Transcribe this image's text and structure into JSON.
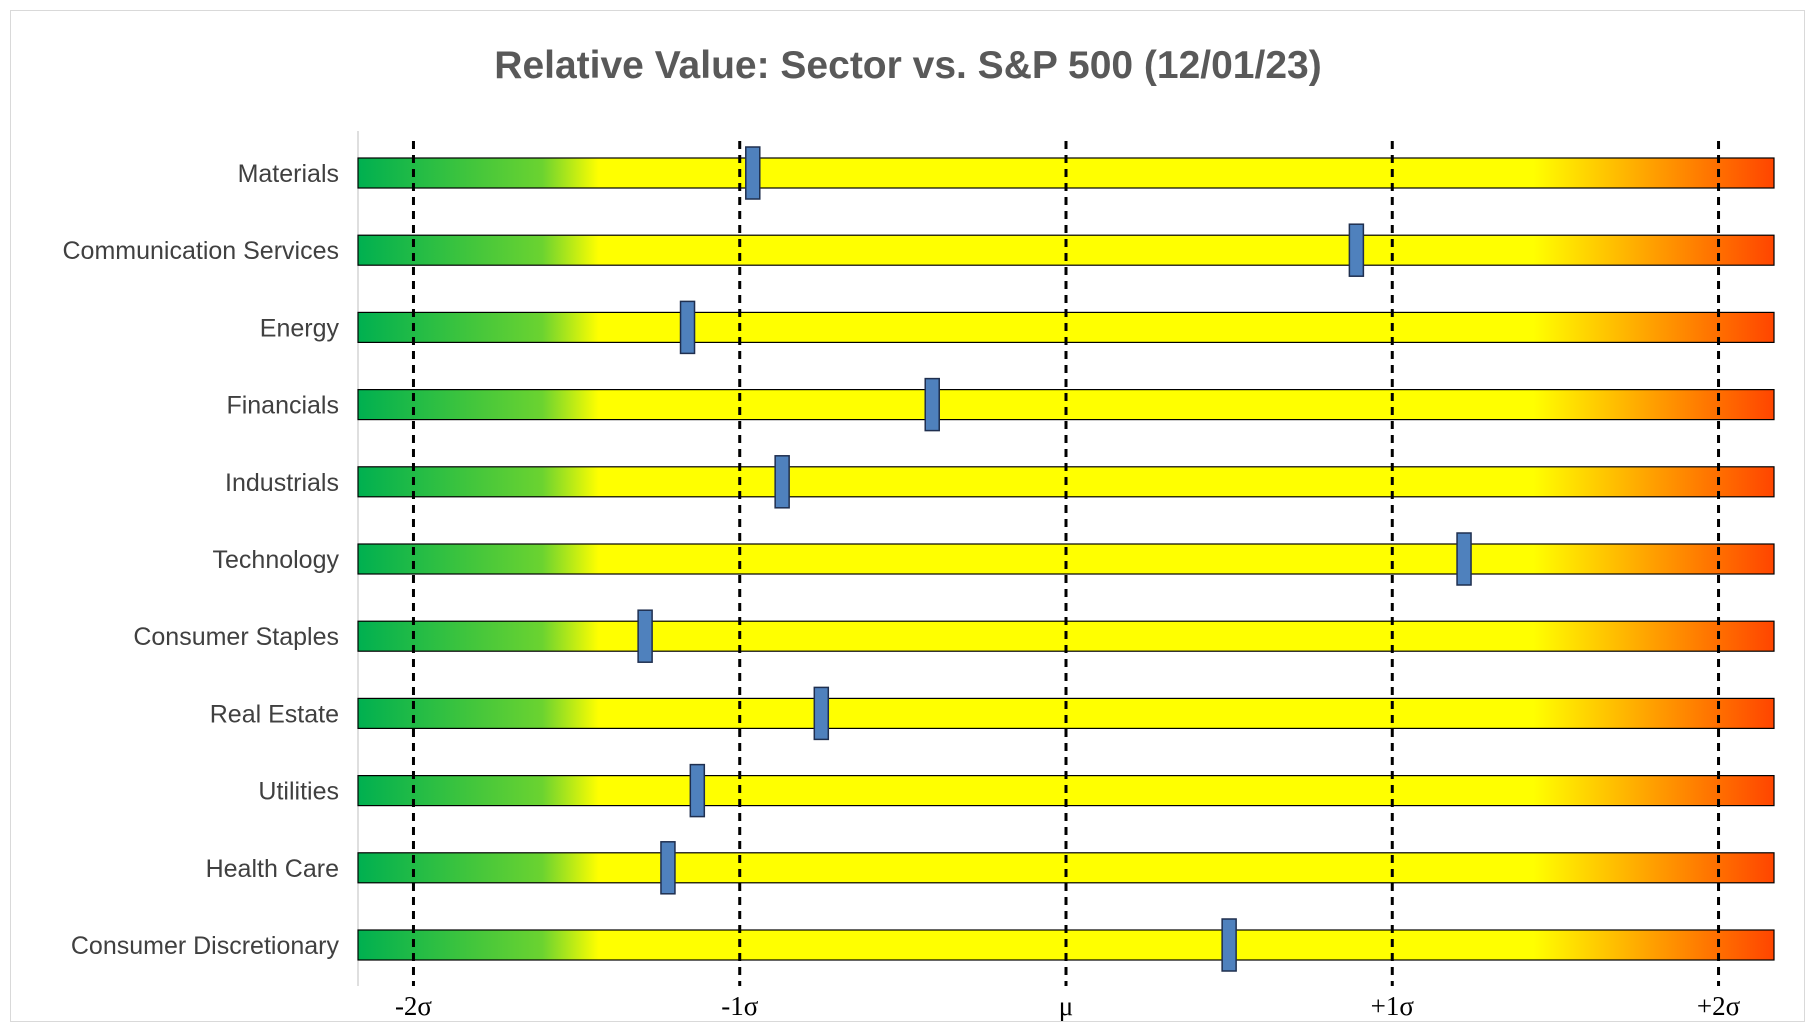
{
  "chart_data": {
    "type": "bar",
    "title": "Relative Value: Sector vs. S&P 500 (12/01/23)",
    "xlabel": "",
    "ylabel": "",
    "xlim": [
      -2.17,
      2.17
    ],
    "x_ticks": [
      {
        "value": -2,
        "label": "-2σ"
      },
      {
        "value": -1,
        "label": "-1σ"
      },
      {
        "value": 0,
        "label": "μ"
      },
      {
        "value": 1,
        "label": "+1σ"
      },
      {
        "value": 2,
        "label": "+2σ"
      }
    ],
    "categories": [
      "Materials",
      "Communication Services",
      "Energy",
      "Financials",
      "Industrials",
      "Technology",
      "Consumer Staples",
      "Real Estate",
      "Utilities",
      "Health Care",
      "Consumer Discretionary"
    ],
    "values": [
      -0.96,
      0.89,
      -1.16,
      -0.41,
      -0.87,
      1.22,
      -1.29,
      -0.75,
      -1.13,
      -1.22,
      0.5
    ],
    "colors": {
      "green": "#00b050",
      "light_green": "#92d050",
      "yellow": "#ffff00",
      "orange": "#ff9900",
      "red": "#ff4500",
      "marker": "#4f81bd",
      "guide_line": "#000000"
    }
  }
}
